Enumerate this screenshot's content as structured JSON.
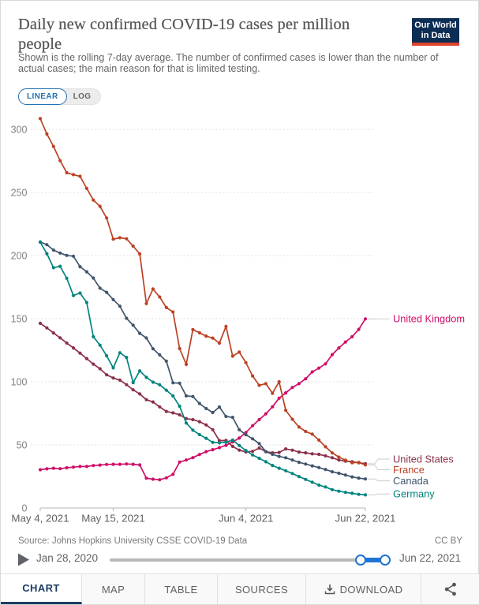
{
  "header": {
    "title": "Daily new confirmed COVID-19 cases per million people",
    "subtitle": "Shown is the rolling 7-day average. The number of confirmed cases is lower than the number of actual cases; the main reason for that is limited testing.",
    "logo_line1": "Our World",
    "logo_line2": "in Data",
    "logo_bg_color": "#0d2e54",
    "logo_accent_color": "#e0422d"
  },
  "toolbar": {
    "linear_label": "LINEAR",
    "log_label": "LOG",
    "active": "LINEAR",
    "accent_color": "#2271b2"
  },
  "chart_data": {
    "type": "line",
    "title": "Daily new confirmed COVID-19 cases per million people",
    "xlabel": "",
    "ylabel": "",
    "y_ticks": [
      0,
      50,
      100,
      150,
      200,
      250,
      300
    ],
    "ylim": [
      0,
      310
    ],
    "x_tick_labels": [
      "May 4, 2021",
      "May 15, 2021",
      "Jun 4, 2021",
      "Jun 22, 2021"
    ],
    "x_tick_indices": [
      0,
      11,
      31,
      49
    ],
    "grid": true,
    "legend_position": "right",
    "dates": [
      "2021-05-04",
      "2021-05-05",
      "2021-05-06",
      "2021-05-07",
      "2021-05-08",
      "2021-05-09",
      "2021-05-10",
      "2021-05-11",
      "2021-05-12",
      "2021-05-13",
      "2021-05-14",
      "2021-05-15",
      "2021-05-16",
      "2021-05-17",
      "2021-05-18",
      "2021-05-19",
      "2021-05-20",
      "2021-05-21",
      "2021-05-22",
      "2021-05-23",
      "2021-05-24",
      "2021-05-25",
      "2021-05-26",
      "2021-05-27",
      "2021-05-28",
      "2021-05-29",
      "2021-05-30",
      "2021-05-31",
      "2021-06-01",
      "2021-06-02",
      "2021-06-03",
      "2021-06-04",
      "2021-06-05",
      "2021-06-06",
      "2021-06-07",
      "2021-06-08",
      "2021-06-09",
      "2021-06-10",
      "2021-06-11",
      "2021-06-12",
      "2021-06-13",
      "2021-06-14",
      "2021-06-15",
      "2021-06-16",
      "2021-06-17",
      "2021-06-18",
      "2021-06-19",
      "2021-06-20",
      "2021-06-21",
      "2021-06-22"
    ],
    "series": [
      {
        "name": "United Kingdom",
        "color": "#cf0f68",
        "values": [
          30.3,
          31.0,
          31.5,
          31.1,
          31.9,
          32.4,
          32.9,
          32.9,
          33.6,
          34.0,
          34.5,
          34.6,
          34.6,
          34.9,
          34.6,
          34.1,
          23.6,
          22.8,
          22.4,
          23.9,
          26.7,
          36.4,
          38.0,
          39.9,
          42.4,
          44.6,
          46.2,
          47.8,
          49.6,
          52.3,
          55.4,
          59.8,
          65.2,
          70.0,
          74.6,
          80.2,
          87.0,
          91.2,
          95.5,
          98.5,
          102.4,
          107.8,
          110.8,
          114.2,
          121.5,
          126.8,
          131.5,
          135.7,
          141.5,
          149.8
        ]
      },
      {
        "name": "United States",
        "color": "#8a3048",
        "values": [
          146.3,
          142.7,
          138.7,
          134.8,
          130.7,
          126.8,
          122.7,
          118.4,
          114.0,
          110.3,
          105.5,
          103.0,
          101.3,
          97.7,
          93.6,
          90.4,
          85.8,
          84.0,
          80.1,
          76.5,
          75.4,
          73.8,
          70.8,
          70.0,
          68.4,
          65.8,
          62.0,
          53.4,
          53.5,
          48.8,
          45.8,
          44.4,
          44.9,
          47.5,
          44.6,
          43.7,
          44.0,
          46.8,
          45.8,
          44.3,
          43.7,
          42.9,
          42.5,
          41.3,
          39.8,
          38.0,
          37.1,
          36.6,
          35.9,
          35.1
        ]
      },
      {
        "name": "France",
        "color": "#bc4123",
        "values": [
          308.5,
          296.3,
          286.5,
          275.2,
          265.6,
          264.1,
          262.8,
          253.2,
          244.0,
          239.0,
          229.8,
          213.0,
          214.1,
          213.3,
          207.5,
          201.3,
          162.0,
          173.5,
          167.2,
          158.8,
          155.3,
          126.3,
          113.8,
          141.4,
          138.8,
          136.2,
          134.6,
          130.6,
          143.9,
          120.3,
          123.5,
          115.1,
          104.6,
          97.2,
          98.5,
          90.9,
          100.0,
          77.4,
          70.3,
          64.1,
          60.6,
          58.5,
          53.8,
          48.5,
          43.6,
          40.3,
          37.9,
          35.8,
          36.1,
          34.1
        ]
      },
      {
        "name": "Canada",
        "color": "#40556b",
        "values": [
          210.8,
          208.6,
          204.4,
          202.0,
          200.1,
          199.5,
          191.2,
          187.1,
          182.2,
          174.2,
          170.9,
          165.1,
          159.9,
          150.3,
          144.8,
          138.4,
          134.7,
          126.1,
          121.3,
          116.3,
          99.2,
          98.9,
          88.8,
          88.3,
          82.8,
          78.8,
          75.6,
          80.0,
          72.5,
          71.8,
          62.0,
          58.0,
          54.8,
          51.0,
          44.6,
          42.5,
          40.8,
          39.8,
          38.0,
          36.2,
          34.8,
          33.4,
          32.0,
          30.5,
          28.7,
          27.5,
          26.1,
          24.6,
          23.7,
          23.0
        ]
      },
      {
        "name": "Germany",
        "color": "#00847e",
        "values": [
          210.6,
          201.5,
          190.4,
          191.5,
          182.0,
          168.3,
          170.3,
          162.8,
          135.7,
          129.0,
          120.6,
          111.0,
          123.0,
          119.3,
          99.3,
          108.6,
          103.5,
          99.7,
          97.6,
          93.3,
          88.8,
          80.6,
          67.3,
          61.6,
          58.1,
          55.2,
          52.0,
          51.6,
          52.1,
          53.8,
          49.5,
          45.5,
          42.0,
          39.4,
          36.6,
          33.7,
          31.5,
          29.5,
          27.3,
          24.9,
          22.6,
          20.4,
          18.1,
          16.6,
          14.5,
          13.3,
          12.4,
          11.6,
          10.8,
          10.4
        ]
      }
    ]
  },
  "footer_meta": {
    "source": "Source: Johns Hopkins University CSSE COVID-19 Data",
    "license": "CC BY"
  },
  "timeline": {
    "start_label": "Jan 28, 2020",
    "end_label": "Jun 22, 2021",
    "range_start": "Jan 28, 2020",
    "range_end": "Jun 22, 2021"
  },
  "tabs": {
    "chart": "CHART",
    "map": "MAP",
    "table": "TABLE",
    "sources": "SOURCES",
    "download": "DOWNLOAD",
    "active": "CHART"
  }
}
